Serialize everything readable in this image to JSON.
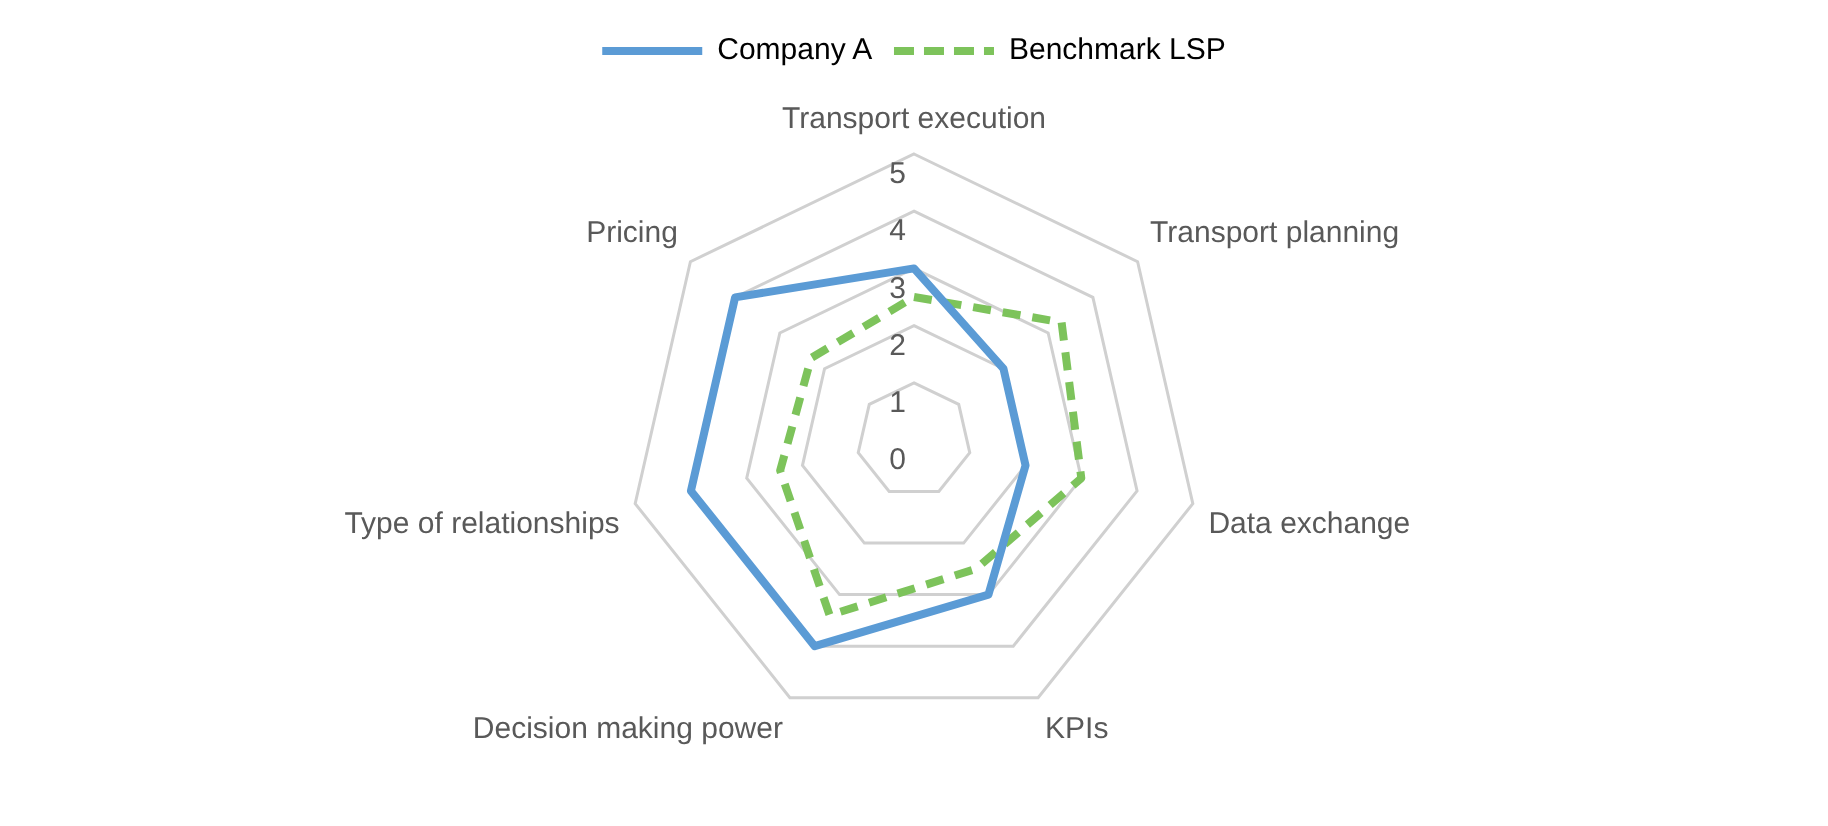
{
  "chart_data": {
    "type": "radar",
    "categories": [
      "Transport execution",
      "Transport planning",
      "Data exchange",
      "KPIs",
      "Decision making power",
      "Type of relationships",
      "Pricing"
    ],
    "ylim": [
      0,
      5
    ],
    "yticks": [
      0,
      1,
      2,
      3,
      4,
      5
    ],
    "grid": true,
    "legend": "top",
    "marker": "none",
    "series": [
      {
        "name": "Company A",
        "color": "#5b9bd5",
        "line_style": "solid",
        "values": [
          3,
          2,
          2,
          3,
          4,
          4,
          4
        ]
      },
      {
        "name": "Benchmark LSP",
        "color": "#7dc35b",
        "line_style": "dashed",
        "values": [
          2.5,
          3.3,
          3,
          2.5,
          3.4,
          2.4,
          2.3
        ]
      }
    ]
  }
}
